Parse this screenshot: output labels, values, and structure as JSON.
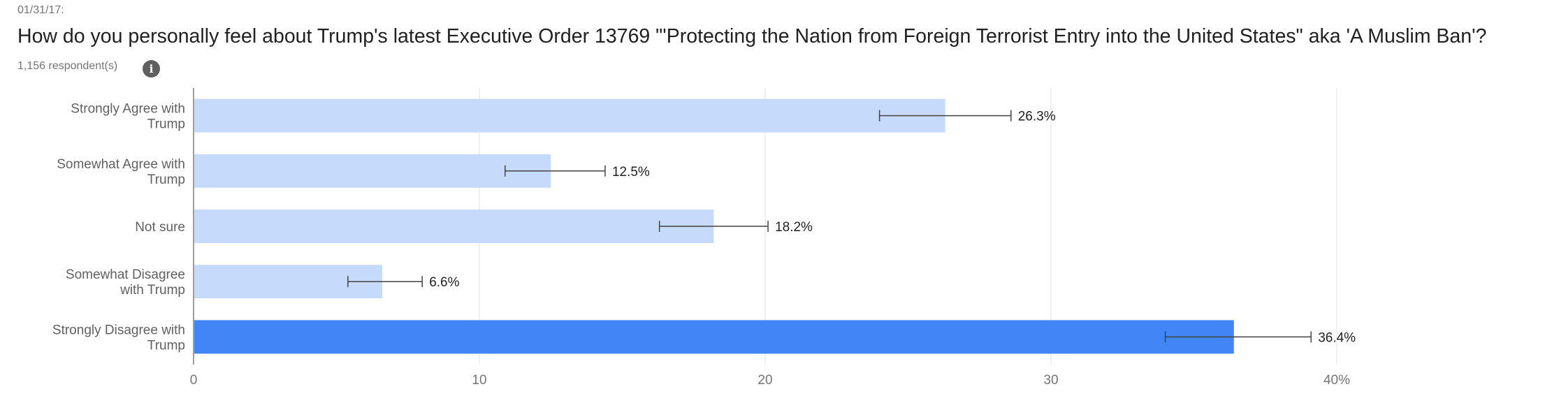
{
  "header": {
    "date": "01/31/17:",
    "question": "How do you personally feel about Trump's latest Executive Order 13769 \"'Protecting the Nation from Foreign Terrorist Entry into the United States\" aka 'A Muslim Ban'?",
    "respondents": "1,156 respondent(s)"
  },
  "chart_data": {
    "type": "bar",
    "orientation": "horizontal",
    "categories": [
      [
        "Strongly Agree with",
        "Trump"
      ],
      [
        "Somewhat Agree with",
        "Trump"
      ],
      [
        "Not sure"
      ],
      [
        "Somewhat Disagree",
        "with Trump"
      ],
      [
        "Strongly Disagree with",
        "Trump"
      ]
    ],
    "values": [
      26.3,
      12.5,
      18.2,
      6.6,
      36.4
    ],
    "error_low": [
      24.0,
      10.9,
      16.3,
      5.4,
      34.0
    ],
    "error_high": [
      28.6,
      14.4,
      20.1,
      8.0,
      39.1
    ],
    "data_labels": [
      "26.3%",
      "12.5%",
      "18.2%",
      "6.6%",
      "36.4%"
    ],
    "x_ticks": [
      "0",
      "10",
      "20",
      "30",
      "40%"
    ],
    "xlim": [
      0,
      40
    ],
    "grid": true,
    "highlight_index": 4,
    "colors": {
      "bar": "#c6dafc",
      "highlight": "#4285f4",
      "grid": "#e0e0e0",
      "axis": "#9e9e9e",
      "error": "#424242"
    }
  }
}
